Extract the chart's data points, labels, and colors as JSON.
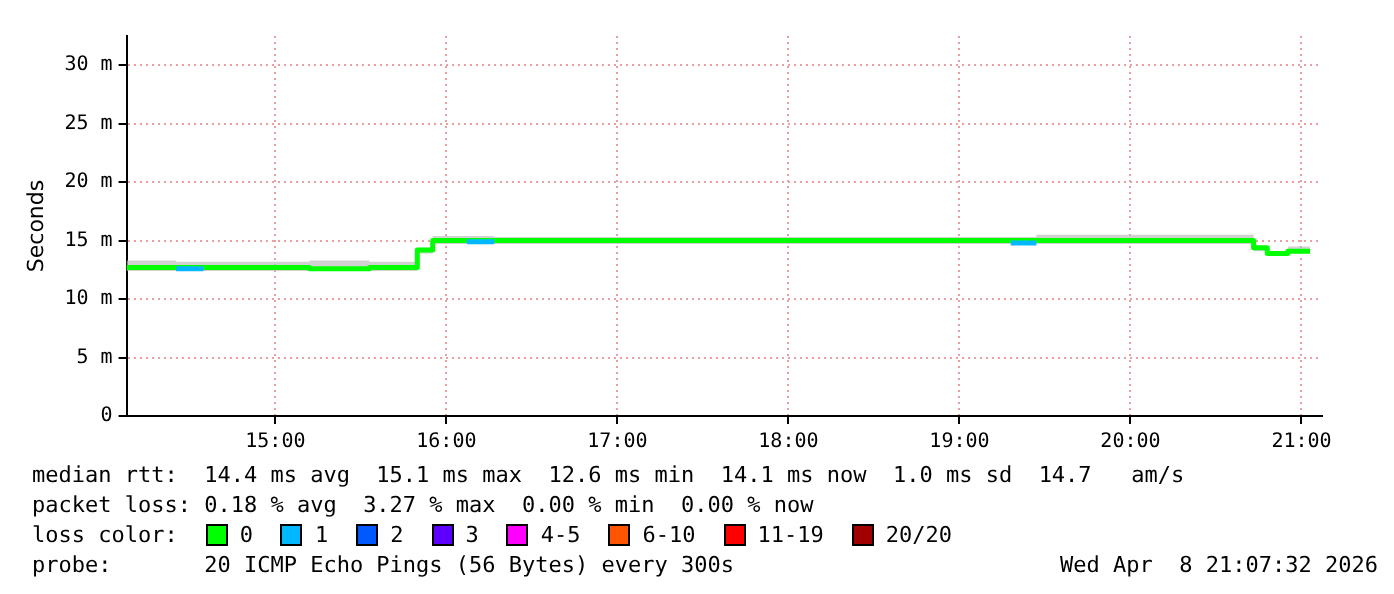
{
  "chart_data": {
    "type": "step",
    "ylabel": "Seconds",
    "legend": "bottom",
    "legend_title": "loss color:",
    "grid": true,
    "marker": "none",
    "x": [
      14.13,
      14.42,
      14.58,
      15.2,
      15.55,
      15.83,
      15.92,
      16.12,
      16.28,
      17.5,
      19.3,
      19.45,
      20.72,
      20.8,
      20.92,
      21.05
    ],
    "xlim": [
      14.13,
      21.12
    ],
    "xticks": [
      {
        "value": 15,
        "label": "15:00"
      },
      {
        "value": 16,
        "label": "16:00"
      },
      {
        "value": 17,
        "label": "17:00"
      },
      {
        "value": 18,
        "label": "18:00"
      },
      {
        "value": 19,
        "label": "19:00"
      },
      {
        "value": 20,
        "label": "20:00"
      },
      {
        "value": 21,
        "label": "21:00"
      }
    ],
    "ylim": [
      0,
      32.5
    ],
    "yticks": [
      0,
      {
        "value": 5,
        "label": "5 m"
      },
      {
        "value": 10,
        "label": "10 m"
      },
      {
        "value": 15,
        "label": "15 m"
      },
      {
        "value": 20,
        "label": "20 m"
      },
      {
        "value": 25,
        "label": "25 m"
      },
      {
        "value": 30,
        "label": "30 m"
      }
    ],
    "series": [
      {
        "name": "0",
        "color": "#00ff00",
        "values": [
          12.7,
          12.7,
          12.7,
          12.6,
          12.7,
          14.2,
          15.0,
          15.0,
          15.0,
          15.0,
          15.0,
          15.0,
          14.4,
          13.9,
          14.1,
          14.1
        ],
        "lower": [
          12.4,
          12.4,
          12.4,
          12.4,
          12.4,
          13.9,
          14.7,
          14.7,
          14.7,
          14.7,
          14.7,
          14.7,
          14.1,
          13.7,
          13.9,
          13.9
        ],
        "upper": [
          13.3,
          13.2,
          13.2,
          13.3,
          13.2,
          14.4,
          15.4,
          15.4,
          15.3,
          15.3,
          15.3,
          15.5,
          14.5,
          14.1,
          14.5,
          14.5
        ]
      },
      {
        "name": "1",
        "color": "#00b8ff",
        "values": [
          null,
          12.6,
          12.6,
          null,
          null,
          null,
          null,
          14.9,
          14.9,
          null,
          14.8,
          14.8,
          null,
          null,
          null,
          null
        ]
      },
      {
        "name": "2",
        "color": "#0059ff",
        "values": [
          null,
          null,
          null,
          null,
          null,
          null,
          null,
          null,
          null,
          null,
          null,
          null,
          null,
          null,
          null,
          null
        ]
      },
      {
        "name": "3",
        "color": "#5e00ff",
        "values": [
          null,
          null,
          null,
          null,
          null,
          null,
          null,
          null,
          null,
          null,
          null,
          null,
          null,
          null,
          null,
          null
        ]
      },
      {
        "name": "4-5",
        "color": "#ff00ff",
        "values": [
          null,
          null,
          null,
          null,
          null,
          null,
          null,
          null,
          null,
          null,
          null,
          null,
          null,
          null,
          null,
          null
        ]
      },
      {
        "name": "6-10",
        "color": "#ff5500",
        "values": [
          null,
          null,
          null,
          null,
          null,
          null,
          null,
          null,
          null,
          null,
          null,
          null,
          null,
          null,
          null,
          null
        ]
      },
      {
        "name": "11-19",
        "color": "#ff0000",
        "values": [
          null,
          null,
          null,
          null,
          null,
          null,
          null,
          null,
          null,
          null,
          null,
          null,
          null,
          null,
          null,
          null
        ]
      },
      {
        "name": "20/20",
        "color": "#a10000",
        "values": [
          null,
          null,
          null,
          null,
          null,
          null,
          null,
          null,
          null,
          null,
          null,
          null,
          null,
          null,
          null,
          null
        ]
      }
    ],
    "annotations": [
      "median rtt:  14.4 ms avg  15.1 ms max  12.6 ms min  14.1 ms now  1.0 ms sd  14.7   am/s",
      "packet loss: 0.18 % avg  3.27 % max  0.00 % min  0.00 % now",
      "probe:       20 ICMP Echo Pings (56 Bytes) every 300s",
      "Wed Apr  8 21:07:32 2026"
    ]
  }
}
